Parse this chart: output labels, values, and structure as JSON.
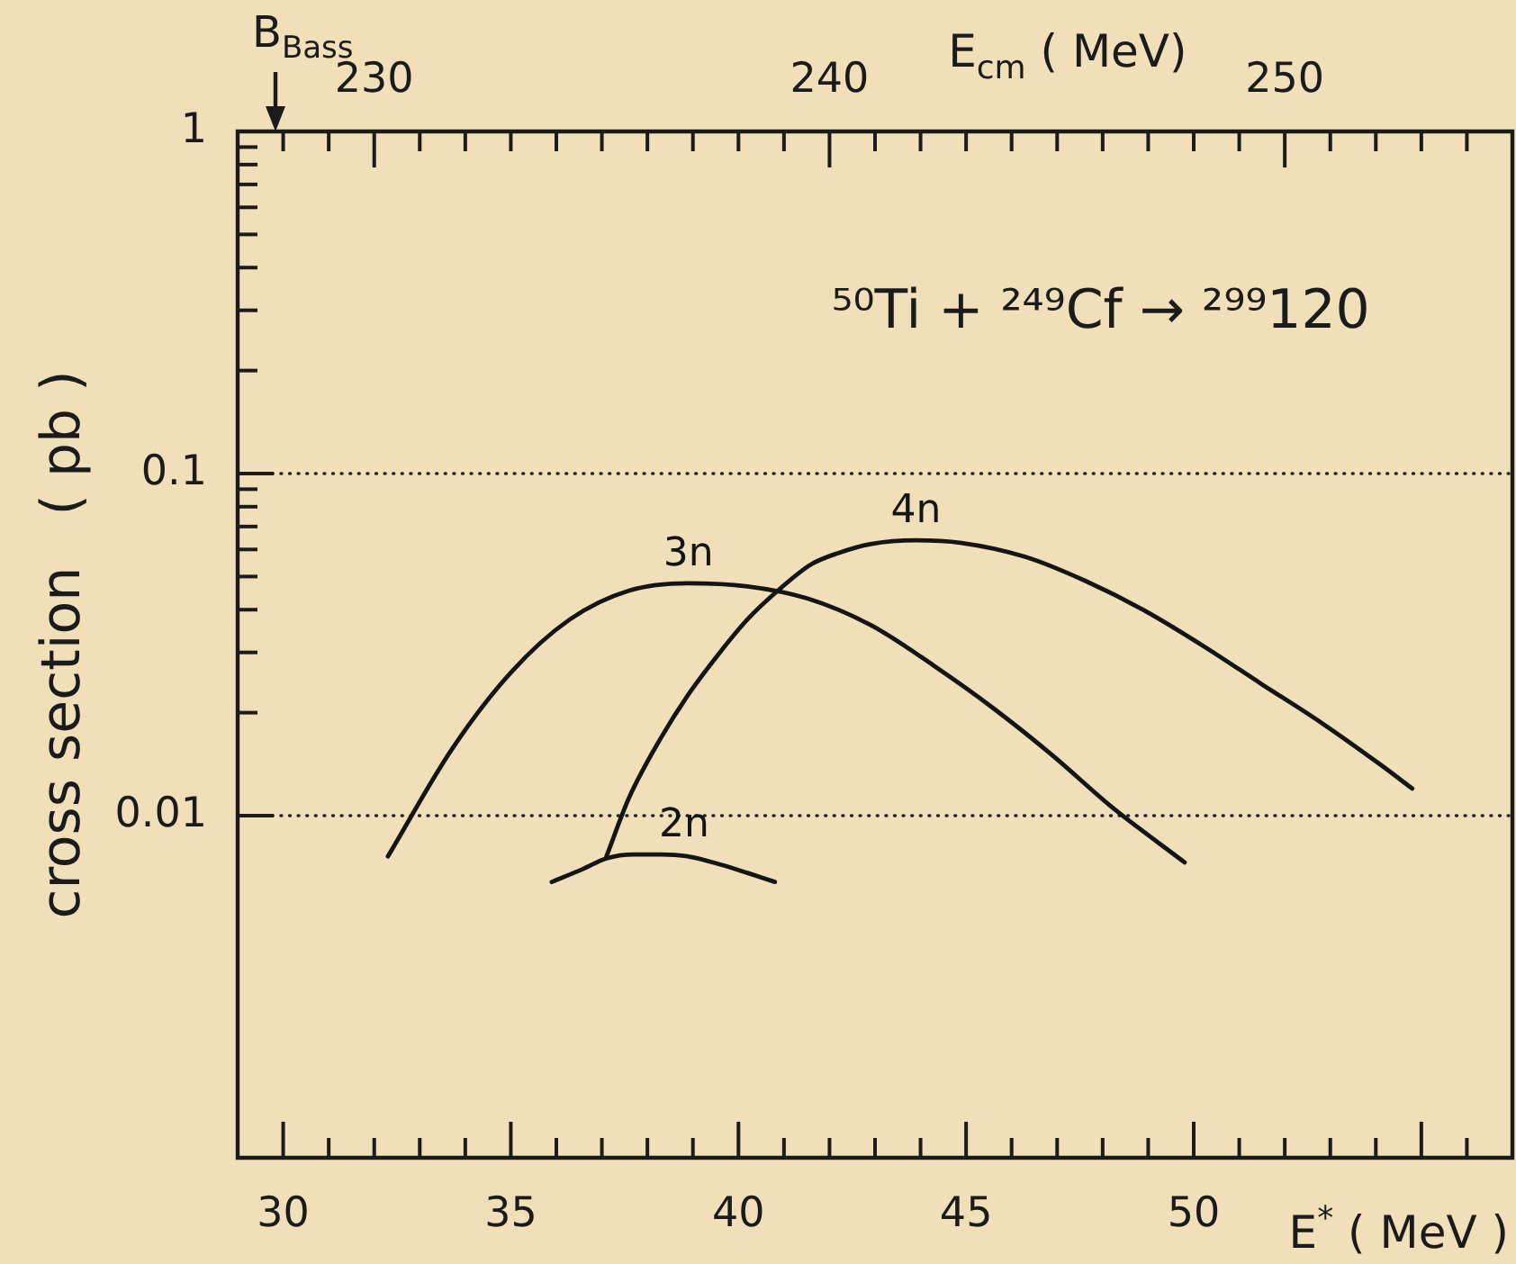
{
  "chart_data": {
    "type": "line",
    "title": "⁵⁰Ti + ²⁴⁹Cf → ²⁹⁹120",
    "xlabel": "E$^{*}$ ( MeV )",
    "x2label": "E$_{cm}$ ( MeV)",
    "ylabel": "cross section   ( pb )",
    "log": "y",
    "xlim": [
      29,
      57
    ],
    "xticks": [
      30,
      {
        "value": 31,
        "label": null
      },
      {
        "value": 32,
        "label": null
      },
      {
        "value": 33,
        "label": null
      },
      {
        "value": 34,
        "label": null
      },
      35,
      {
        "value": 36,
        "label": null
      },
      {
        "value": 37,
        "label": null
      },
      {
        "value": 38,
        "label": null
      },
      {
        "value": 39,
        "label": null
      },
      40,
      {
        "value": 41,
        "label": null
      },
      {
        "value": 42,
        "label": null
      },
      {
        "value": 43,
        "label": null
      },
      {
        "value": 44,
        "label": null
      },
      45,
      {
        "value": 46,
        "label": null
      },
      {
        "value": 47,
        "label": null
      },
      {
        "value": 48,
        "label": null
      },
      {
        "value": 49,
        "label": null
      },
      50,
      {
        "value": 51,
        "label": null
      },
      {
        "value": 52,
        "label": null
      },
      {
        "value": 53,
        "label": null
      },
      {
        "value": 54,
        "label": null
      },
      {
        "value": 55,
        "label": null
      },
      {
        "value": 56,
        "label": null
      }
    ],
    "x2lim": [
      227,
      255
    ],
    "x2ticks": [
      {
        "value": 228,
        "label": null
      },
      {
        "value": 229,
        "label": null
      },
      230,
      {
        "value": 231,
        "label": null
      },
      {
        "value": 232,
        "label": null
      },
      {
        "value": 233,
        "label": null
      },
      {
        "value": 234,
        "label": null
      },
      {
        "value": 235,
        "label": null
      },
      {
        "value": 236,
        "label": null
      },
      {
        "value": 237,
        "label": null
      },
      {
        "value": 238,
        "label": null
      },
      {
        "value": 239,
        "label": null
      },
      240,
      {
        "value": 241,
        "label": null
      },
      {
        "value": 242,
        "label": null
      },
      {
        "value": 243,
        "label": null
      },
      {
        "value": 244,
        "label": null
      },
      {
        "value": 245,
        "label": null
      },
      {
        "value": 246,
        "label": null
      },
      {
        "value": 247,
        "label": null
      },
      {
        "value": 248,
        "label": null
      },
      {
        "value": 249,
        "label": null
      },
      250,
      {
        "value": 251,
        "label": null
      },
      {
        "value": 252,
        "label": null
      },
      {
        "value": 253,
        "label": null
      },
      {
        "value": 254,
        "label": null
      }
    ],
    "ylim": [
      0.001,
      1
    ],
    "yticks": [
      1,
      {
        "value": 0.9,
        "label": null
      },
      {
        "value": 0.8,
        "label": null
      },
      {
        "value": 0.7,
        "label": null
      },
      {
        "value": 0.6,
        "label": null
      },
      {
        "value": 0.5,
        "label": null
      },
      {
        "value": 0.4,
        "label": null
      },
      {
        "value": 0.3,
        "label": null
      },
      {
        "value": 0.2,
        "label": null
      },
      0.1,
      {
        "value": 0.09,
        "label": null
      },
      {
        "value": 0.08,
        "label": null
      },
      {
        "value": 0.07,
        "label": null
      },
      {
        "value": 0.06,
        "label": null
      },
      {
        "value": 0.05,
        "label": null
      },
      {
        "value": 0.04,
        "label": null
      },
      {
        "value": 0.03,
        "label": null
      },
      {
        "value": 0.02,
        "label": null
      },
      0.01
    ],
    "ref_lines": [
      {
        "axis": "y",
        "value": 0.1,
        "line_style": "dotted",
        "color": "#222222"
      },
      {
        "axis": "y",
        "value": 0.01,
        "line_style": "dotted",
        "color": "#222222"
      }
    ],
    "annotations": [
      "B$_{Bass}$"
    ],
    "series": [
      {
        "name": "3n",
        "color": "#151515",
        "x": [
          32.3,
          33.7,
          35.0,
          36.3,
          37.6,
          38.9,
          40.2,
          41.5,
          42.9,
          44.3,
          45.6,
          46.9,
          48.2,
          49.8
        ],
        "values": [
          0.0076,
          0.0156,
          0.0262,
          0.0375,
          0.0455,
          0.0478,
          0.0468,
          0.0432,
          0.0361,
          0.0274,
          0.0206,
          0.015,
          0.0106,
          0.0073
        ]
      },
      {
        "name": "4n",
        "color": "#151515",
        "x": [
          37.1,
          37.6,
          38.3,
          38.9,
          39.6,
          40.2,
          40.9,
          41.6,
          42.2,
          42.9,
          43.9,
          44.9,
          46.3,
          47.6,
          48.9,
          50.2,
          51.5,
          52.8,
          54.1,
          54.8
        ],
        "values": [
          0.0076,
          0.0113,
          0.0169,
          0.0226,
          0.0301,
          0.0375,
          0.0459,
          0.0543,
          0.0586,
          0.0622,
          0.0638,
          0.0627,
          0.0571,
          0.0487,
          0.0399,
          0.0314,
          0.0242,
          0.0187,
          0.0141,
          0.012
        ]
      },
      {
        "name": "2n",
        "color": "#151515",
        "x": [
          35.9,
          36.6,
          37.1,
          37.7,
          38.3,
          38.9,
          39.6,
          40.2,
          40.8
        ],
        "values": [
          0.0064,
          0.007,
          0.0075,
          0.0077,
          0.0077,
          0.0076,
          0.0072,
          0.0068,
          0.0064
        ]
      }
    ]
  }
}
